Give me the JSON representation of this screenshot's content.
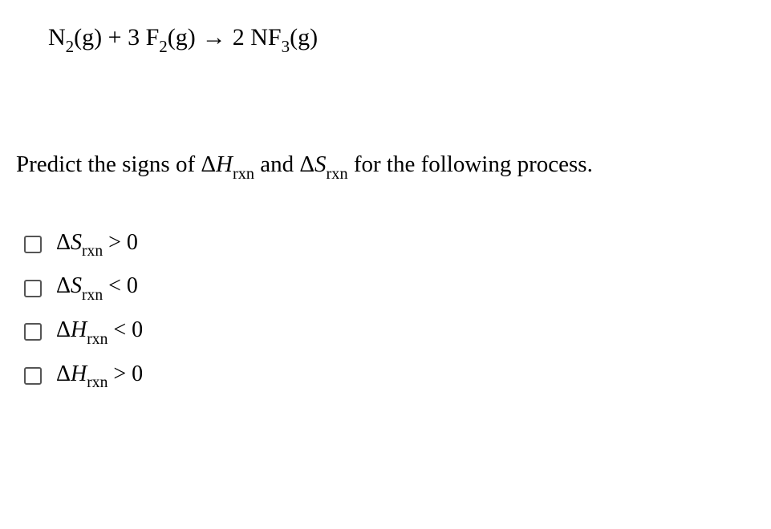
{
  "equation": {
    "r1_coef": "",
    "r1_base": "N",
    "r1_sub": "2",
    "r1_phase": "(g)",
    "plus": " + ",
    "r2_coef": "3 ",
    "r2_base": "F",
    "r2_sub": "2",
    "r2_phase": "(g)",
    "arrow": "→",
    "p1_coef": "2 ",
    "p1_base": "NF",
    "p1_sub": "3",
    "p1_phase": "(g)"
  },
  "prompt": {
    "pre": "Predict the signs of ",
    "t1_delta": "Δ",
    "t1_sym": "H",
    "t1_sub": "rxn",
    "mid": " and ",
    "t2_delta": "Δ",
    "t2_sym": "S",
    "t2_sub": "rxn",
    "post": " for the following process."
  },
  "options": [
    {
      "delta": "Δ",
      "sym": "S",
      "sub": "rxn",
      "rel": " > 0"
    },
    {
      "delta": "Δ",
      "sym": "S",
      "sub": "rxn",
      "rel": " < 0"
    },
    {
      "delta": "Δ",
      "sym": "H",
      "sub": "rxn",
      "rel": " < 0"
    },
    {
      "delta": "Δ",
      "sym": "H",
      "sub": "rxn",
      "rel": " > 0"
    }
  ]
}
